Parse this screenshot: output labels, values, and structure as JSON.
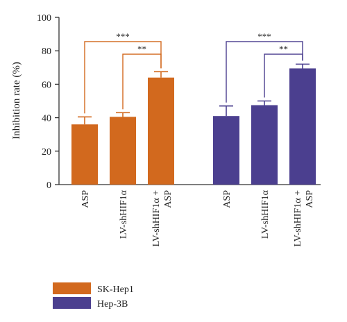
{
  "chart_data": {
    "type": "bar",
    "title": "",
    "xlabel": "",
    "ylabel": "Inhibition rate (%)",
    "ylim": [
      0,
      100
    ],
    "yticks": [
      0,
      20,
      40,
      60,
      80,
      100
    ],
    "grid": false,
    "legend_position": "bottom-left",
    "groups": [
      {
        "name": "SK-Hep1",
        "color": "#D2691E",
        "categories": [
          "ASP",
          "LV-shHIF1α",
          "LV-shHIF1α + ASP"
        ],
        "values": [
          36,
          40.5,
          64
        ],
        "errors": [
          4.5,
          2.5,
          3.5
        ],
        "significance": [
          {
            "from": 0,
            "to": 2,
            "label": "***"
          },
          {
            "from": 1,
            "to": 2,
            "label": "**"
          }
        ]
      },
      {
        "name": "Hep-3B",
        "color": "#4B3F8F",
        "categories": [
          "ASP",
          "LV-shHIF1α",
          "LV-shHIF1α + ASP"
        ],
        "values": [
          41,
          47.5,
          69.5
        ],
        "errors": [
          6,
          2.5,
          2.5
        ],
        "significance": [
          {
            "from": 0,
            "to": 2,
            "label": "***"
          },
          {
            "from": 1,
            "to": 2,
            "label": "**"
          }
        ]
      }
    ]
  }
}
